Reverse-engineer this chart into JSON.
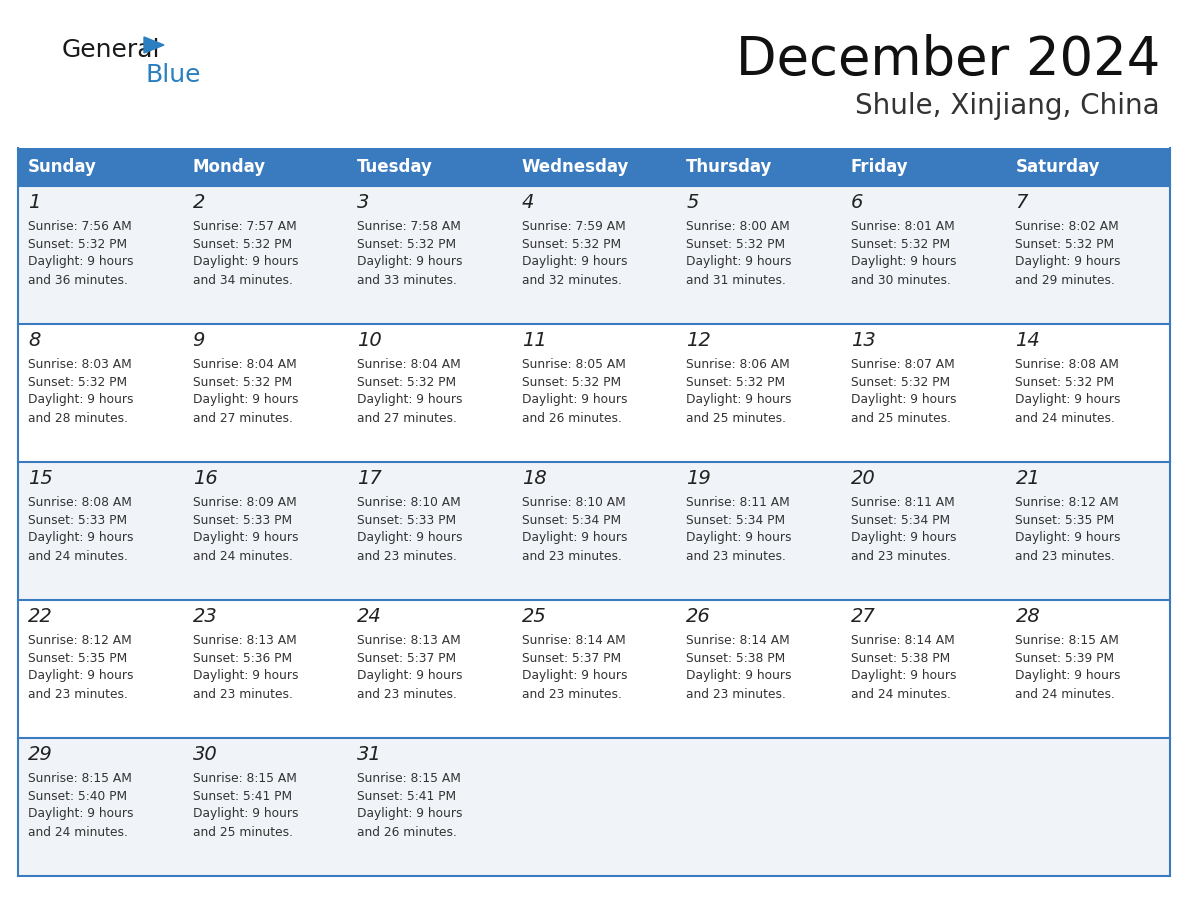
{
  "title": "December 2024",
  "subtitle": "Shule, Xinjiang, China",
  "header_color": "#3a7abf",
  "header_text_color": "#ffffff",
  "row_bg_colors": [
    "#f0f4f8",
    "#ffffff"
  ],
  "border_color": "#3a7abf",
  "text_color": "#333333",
  "day_num_color": "#222222",
  "days_of_week": [
    "Sunday",
    "Monday",
    "Tuesday",
    "Wednesday",
    "Thursday",
    "Friday",
    "Saturday"
  ],
  "calendar_data": [
    [
      {
        "day": 1,
        "sunrise": "7:56 AM",
        "sunset": "5:32 PM",
        "daylight_hours": 9,
        "daylight_minutes": 36
      },
      {
        "day": 2,
        "sunrise": "7:57 AM",
        "sunset": "5:32 PM",
        "daylight_hours": 9,
        "daylight_minutes": 34
      },
      {
        "day": 3,
        "sunrise": "7:58 AM",
        "sunset": "5:32 PM",
        "daylight_hours": 9,
        "daylight_minutes": 33
      },
      {
        "day": 4,
        "sunrise": "7:59 AM",
        "sunset": "5:32 PM",
        "daylight_hours": 9,
        "daylight_minutes": 32
      },
      {
        "day": 5,
        "sunrise": "8:00 AM",
        "sunset": "5:32 PM",
        "daylight_hours": 9,
        "daylight_minutes": 31
      },
      {
        "day": 6,
        "sunrise": "8:01 AM",
        "sunset": "5:32 PM",
        "daylight_hours": 9,
        "daylight_minutes": 30
      },
      {
        "day": 7,
        "sunrise": "8:02 AM",
        "sunset": "5:32 PM",
        "daylight_hours": 9,
        "daylight_minutes": 29
      }
    ],
    [
      {
        "day": 8,
        "sunrise": "8:03 AM",
        "sunset": "5:32 PM",
        "daylight_hours": 9,
        "daylight_minutes": 28
      },
      {
        "day": 9,
        "sunrise": "8:04 AM",
        "sunset": "5:32 PM",
        "daylight_hours": 9,
        "daylight_minutes": 27
      },
      {
        "day": 10,
        "sunrise": "8:04 AM",
        "sunset": "5:32 PM",
        "daylight_hours": 9,
        "daylight_minutes": 27
      },
      {
        "day": 11,
        "sunrise": "8:05 AM",
        "sunset": "5:32 PM",
        "daylight_hours": 9,
        "daylight_minutes": 26
      },
      {
        "day": 12,
        "sunrise": "8:06 AM",
        "sunset": "5:32 PM",
        "daylight_hours": 9,
        "daylight_minutes": 25
      },
      {
        "day": 13,
        "sunrise": "8:07 AM",
        "sunset": "5:32 PM",
        "daylight_hours": 9,
        "daylight_minutes": 25
      },
      {
        "day": 14,
        "sunrise": "8:08 AM",
        "sunset": "5:32 PM",
        "daylight_hours": 9,
        "daylight_minutes": 24
      }
    ],
    [
      {
        "day": 15,
        "sunrise": "8:08 AM",
        "sunset": "5:33 PM",
        "daylight_hours": 9,
        "daylight_minutes": 24
      },
      {
        "day": 16,
        "sunrise": "8:09 AM",
        "sunset": "5:33 PM",
        "daylight_hours": 9,
        "daylight_minutes": 24
      },
      {
        "day": 17,
        "sunrise": "8:10 AM",
        "sunset": "5:33 PM",
        "daylight_hours": 9,
        "daylight_minutes": 23
      },
      {
        "day": 18,
        "sunrise": "8:10 AM",
        "sunset": "5:34 PM",
        "daylight_hours": 9,
        "daylight_minutes": 23
      },
      {
        "day": 19,
        "sunrise": "8:11 AM",
        "sunset": "5:34 PM",
        "daylight_hours": 9,
        "daylight_minutes": 23
      },
      {
        "day": 20,
        "sunrise": "8:11 AM",
        "sunset": "5:34 PM",
        "daylight_hours": 9,
        "daylight_minutes": 23
      },
      {
        "day": 21,
        "sunrise": "8:12 AM",
        "sunset": "5:35 PM",
        "daylight_hours": 9,
        "daylight_minutes": 23
      }
    ],
    [
      {
        "day": 22,
        "sunrise": "8:12 AM",
        "sunset": "5:35 PM",
        "daylight_hours": 9,
        "daylight_minutes": 23
      },
      {
        "day": 23,
        "sunrise": "8:13 AM",
        "sunset": "5:36 PM",
        "daylight_hours": 9,
        "daylight_minutes": 23
      },
      {
        "day": 24,
        "sunrise": "8:13 AM",
        "sunset": "5:37 PM",
        "daylight_hours": 9,
        "daylight_minutes": 23
      },
      {
        "day": 25,
        "sunrise": "8:14 AM",
        "sunset": "5:37 PM",
        "daylight_hours": 9,
        "daylight_minutes": 23
      },
      {
        "day": 26,
        "sunrise": "8:14 AM",
        "sunset": "5:38 PM",
        "daylight_hours": 9,
        "daylight_minutes": 23
      },
      {
        "day": 27,
        "sunrise": "8:14 AM",
        "sunset": "5:38 PM",
        "daylight_hours": 9,
        "daylight_minutes": 24
      },
      {
        "day": 28,
        "sunrise": "8:15 AM",
        "sunset": "5:39 PM",
        "daylight_hours": 9,
        "daylight_minutes": 24
      }
    ],
    [
      {
        "day": 29,
        "sunrise": "8:15 AM",
        "sunset": "5:40 PM",
        "daylight_hours": 9,
        "daylight_minutes": 24
      },
      {
        "day": 30,
        "sunrise": "8:15 AM",
        "sunset": "5:41 PM",
        "daylight_hours": 9,
        "daylight_minutes": 25
      },
      {
        "day": 31,
        "sunrise": "8:15 AM",
        "sunset": "5:41 PM",
        "daylight_hours": 9,
        "daylight_minutes": 26
      },
      null,
      null,
      null,
      null
    ]
  ],
  "logo_color_general": "#1a1a1a",
  "logo_color_blue": "#2a7fc0",
  "logo_triangle_color": "#2a7fc0"
}
